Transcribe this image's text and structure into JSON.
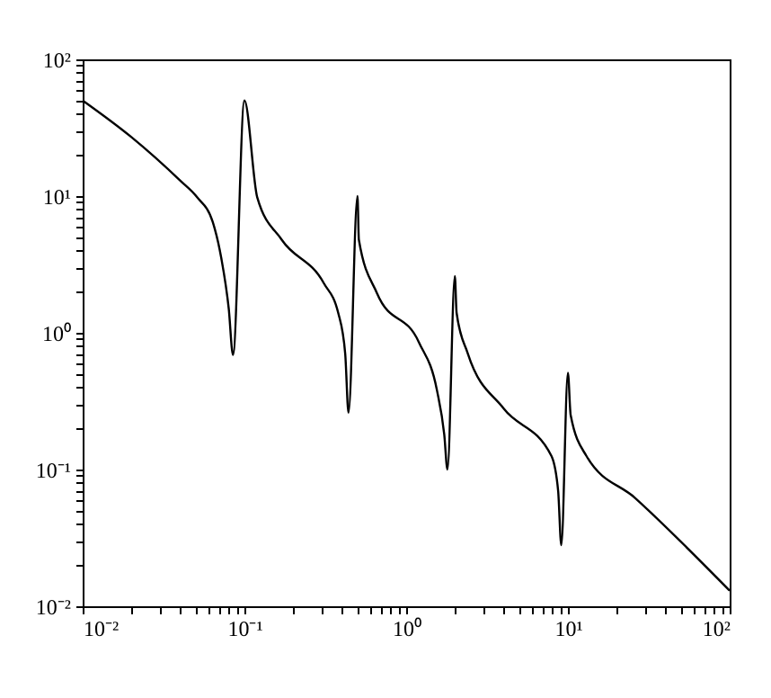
{
  "chart_data": {
    "type": "line",
    "grid": false,
    "log": "xy",
    "marker": "none",
    "line_style": "solid",
    "xlim": [
      0.01,
      100
    ],
    "ylim": [
      0.01,
      100
    ],
    "xticks": [
      {
        "value": 0.01,
        "label": "10⁻²"
      },
      {
        "value": 0.02,
        "label": null
      },
      {
        "value": 0.03,
        "label": null
      },
      {
        "value": 0.04,
        "label": null
      },
      {
        "value": 0.05,
        "label": null
      },
      {
        "value": 0.06,
        "label": null
      },
      {
        "value": 0.07,
        "label": null
      },
      {
        "value": 0.08,
        "label": null
      },
      {
        "value": 0.09,
        "label": null
      },
      {
        "value": 0.1,
        "label": "10⁻¹"
      },
      {
        "value": 0.2,
        "label": null
      },
      {
        "value": 0.3,
        "label": null
      },
      {
        "value": 0.4,
        "label": null
      },
      {
        "value": 0.5,
        "label": null
      },
      {
        "value": 0.6,
        "label": null
      },
      {
        "value": 0.7,
        "label": null
      },
      {
        "value": 0.8,
        "label": null
      },
      {
        "value": 0.9,
        "label": null
      },
      {
        "value": 1,
        "label": "10⁰"
      },
      {
        "value": 2,
        "label": null
      },
      {
        "value": 3,
        "label": null
      },
      {
        "value": 4,
        "label": null
      },
      {
        "value": 5,
        "label": null
      },
      {
        "value": 6,
        "label": null
      },
      {
        "value": 7,
        "label": null
      },
      {
        "value": 8,
        "label": null
      },
      {
        "value": 9,
        "label": null
      },
      {
        "value": 10,
        "label": "10¹"
      },
      {
        "value": 20,
        "label": null
      },
      {
        "value": 30,
        "label": null
      },
      {
        "value": 40,
        "label": null
      },
      {
        "value": 50,
        "label": null
      },
      {
        "value": 60,
        "label": null
      },
      {
        "value": 70,
        "label": null
      },
      {
        "value": 80,
        "label": null
      },
      {
        "value": 90,
        "label": null
      },
      {
        "value": 100,
        "label": "10²"
      }
    ],
    "yticks": [
      {
        "value": 0.01,
        "label": "10⁻²"
      },
      {
        "value": 0.02,
        "label": null
      },
      {
        "value": 0.03,
        "label": null
      },
      {
        "value": 0.04,
        "label": null
      },
      {
        "value": 0.05,
        "label": null
      },
      {
        "value": 0.06,
        "label": null
      },
      {
        "value": 0.07,
        "label": null
      },
      {
        "value": 0.08,
        "label": null
      },
      {
        "value": 0.09,
        "label": null
      },
      {
        "value": 0.1,
        "label": "10⁻¹"
      },
      {
        "value": 0.2,
        "label": null
      },
      {
        "value": 0.3,
        "label": null
      },
      {
        "value": 0.4,
        "label": null
      },
      {
        "value": 0.5,
        "label": null
      },
      {
        "value": 0.6,
        "label": null
      },
      {
        "value": 0.7,
        "label": null
      },
      {
        "value": 0.8,
        "label": null
      },
      {
        "value": 0.9,
        "label": null
      },
      {
        "value": 1,
        "label": "10⁰"
      },
      {
        "value": 2,
        "label": null
      },
      {
        "value": 3,
        "label": null
      },
      {
        "value": 4,
        "label": null
      },
      {
        "value": 5,
        "label": null
      },
      {
        "value": 6,
        "label": null
      },
      {
        "value": 7,
        "label": null
      },
      {
        "value": 8,
        "label": null
      },
      {
        "value": 9,
        "label": null
      },
      {
        "value": 10,
        "label": "10¹"
      },
      {
        "value": 20,
        "label": null
      },
      {
        "value": 30,
        "label": null
      },
      {
        "value": 40,
        "label": null
      },
      {
        "value": 50,
        "label": null
      },
      {
        "value": 60,
        "label": null
      },
      {
        "value": 70,
        "label": null
      },
      {
        "value": 80,
        "label": null
      },
      {
        "value": 90,
        "label": null
      },
      {
        "value": 100,
        "label": "10²"
      }
    ],
    "series": [
      {
        "color": "#000000",
        "x": [
          0.01,
          0.02,
          0.04,
          0.051,
          0.0636,
          0.072,
          0.08,
          0.085,
          0.1,
          0.12,
          0.17,
          0.31,
          0.38,
          0.42,
          0.44,
          0.5,
          0.51,
          0.66,
          1.2,
          1.55,
          1.72,
          1.8,
          2.0,
          2.05,
          2.4,
          4.0,
          7.9,
          8.7,
          9.1,
          10,
          10.4,
          13,
          26,
          100
        ],
        "values": [
          50,
          27,
          13,
          9.8,
          6.5,
          3.5,
          1.5,
          0.69,
          50,
          9.8,
          4.8,
          2.3,
          1.4,
          0.7,
          0.26,
          10,
          4.8,
          1.95,
          0.85,
          0.38,
          0.18,
          0.1,
          2.6,
          1.4,
          0.71,
          0.28,
          0.126,
          0.07,
          0.028,
          0.51,
          0.25,
          0.126,
          0.062,
          0.013
        ]
      }
    ]
  }
}
